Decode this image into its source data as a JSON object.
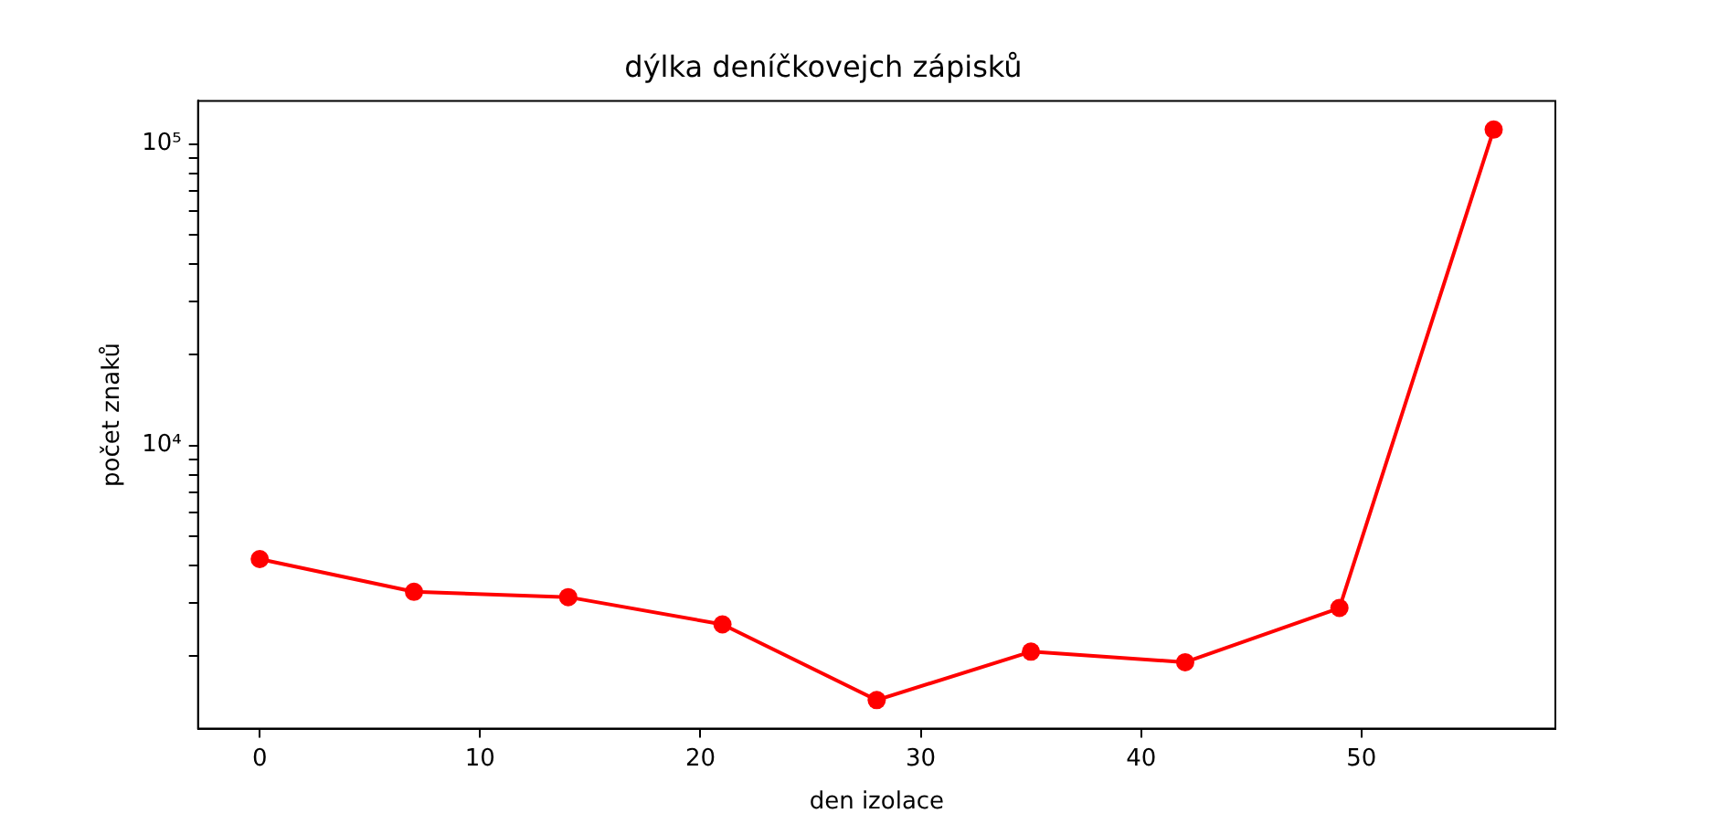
{
  "chart_data": {
    "type": "line",
    "title": "dýlka deníčkovejch zápisků",
    "xlabel": "den izolace",
    "ylabel": "počet znaků",
    "x": [
      0,
      7,
      14,
      21,
      28,
      35,
      42,
      49,
      56
    ],
    "series": [
      {
        "color": "#ff0000",
        "values": [
          4200,
          3270,
          3140,
          2550,
          1430,
          2070,
          1910,
          2890,
          111600
        ]
      }
    ],
    "log": "y",
    "xlim": [
      -2.8,
      58.8
    ],
    "xticks": [
      0,
      10,
      20,
      30,
      40,
      50
    ],
    "ylim": [
      1150,
      139000
    ],
    "yticks": [
      {
        "value": 2000,
        "label": null
      },
      {
        "value": 3000,
        "label": null
      },
      {
        "value": 4000,
        "label": null
      },
      {
        "value": 5000,
        "label": null
      },
      {
        "value": 6000,
        "label": null
      },
      {
        "value": 7000,
        "label": null
      },
      {
        "value": 8000,
        "label": null
      },
      {
        "value": 9000,
        "label": null
      },
      {
        "value": 10000,
        "label": "10⁴"
      },
      {
        "value": 20000,
        "label": null
      },
      {
        "value": 30000,
        "label": null
      },
      {
        "value": 40000,
        "label": null
      },
      {
        "value": 50000,
        "label": null
      },
      {
        "value": 60000,
        "label": null
      },
      {
        "value": 70000,
        "label": null
      },
      {
        "value": 80000,
        "label": null
      },
      {
        "value": 90000,
        "label": null
      },
      {
        "value": 100000,
        "label": "10⁵"
      }
    ],
    "grid": false,
    "legend": false,
    "marker": "circle",
    "line_style": "solid"
  }
}
